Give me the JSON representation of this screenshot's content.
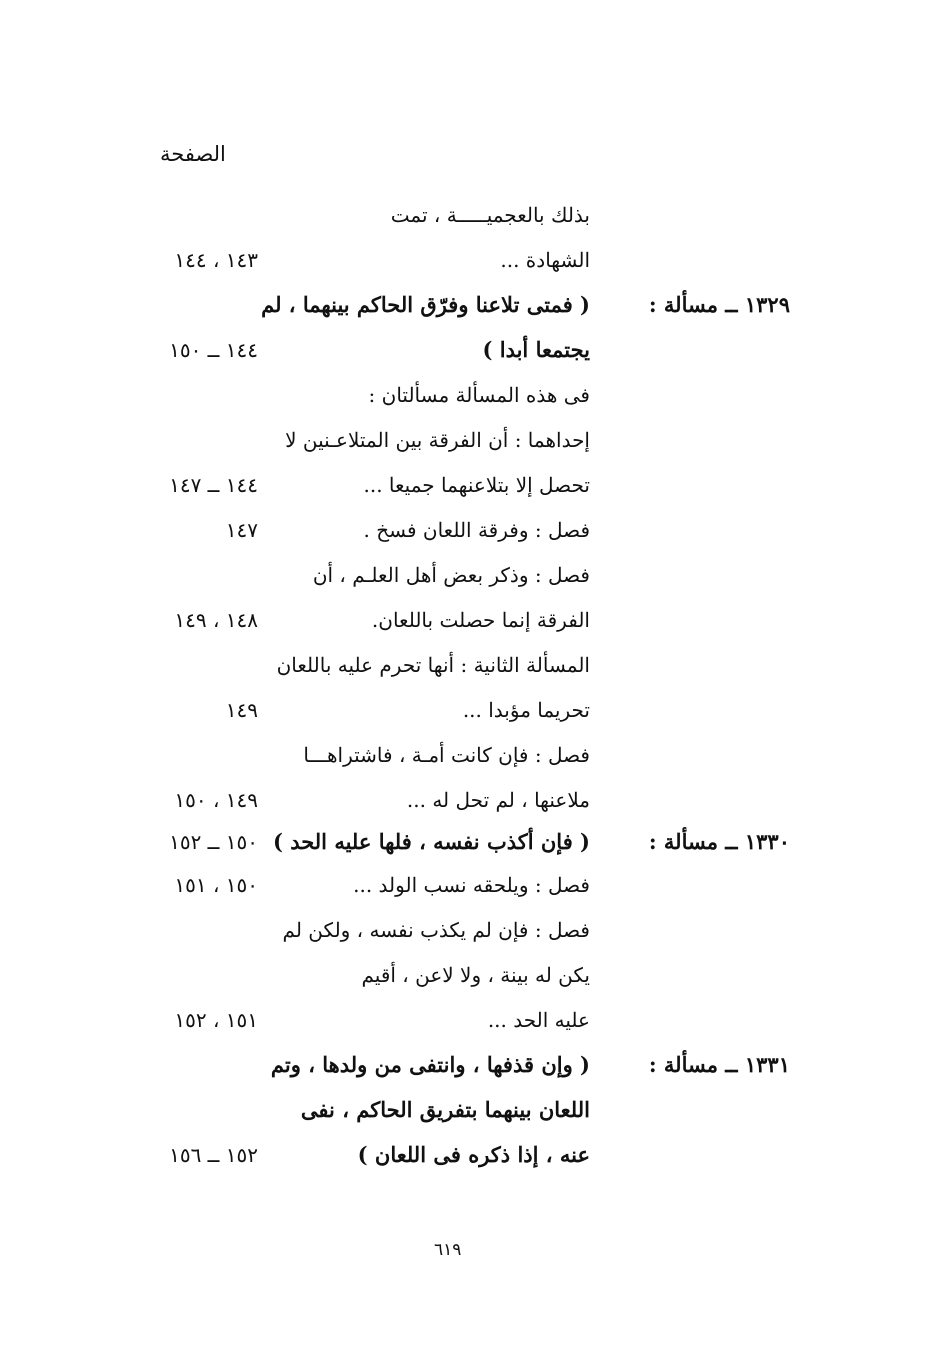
{
  "header": {
    "page_column_label": "الصفحة"
  },
  "rows": [
    {
      "text": "بذلك بالعجميـــــة ، تمت",
      "pages": "",
      "label": "",
      "bold": false
    },
    {
      "text": "الشهادة ...",
      "pages": "١٤٣ ، ١٤٤",
      "label": "",
      "bold": false
    },
    {
      "text": "( فمتى تلاعنا وفرّق الحاكم بينهما ، لم",
      "pages": "",
      "label": "١٣٢٩ ــ مسألة :",
      "bold": true
    },
    {
      "text": "يجتمعا أبدا )",
      "pages": "١٤٤ ــ ١٥٠",
      "label": "",
      "bold": true
    },
    {
      "text": "فى هذه المسألة مسألتان :",
      "pages": "",
      "label": "",
      "bold": false
    },
    {
      "text": "إحداهما : أن الفرقة بين المتلاعـنين لا",
      "pages": "",
      "label": "",
      "bold": false
    },
    {
      "text": "تحصل إلا بتلاعنهما جميعا ...",
      "pages": "١٤٤ ــ ١٤٧",
      "label": "",
      "bold": false
    },
    {
      "text": "فصل : وفرقة اللعان فسخ .",
      "pages": "١٤٧",
      "label": "",
      "bold": false
    },
    {
      "text": "فصل : وذكر بعض أهل العلـم ، أن",
      "pages": "",
      "label": "",
      "bold": false
    },
    {
      "text": "الفرقة إنما حصلت باللعان.",
      "pages": "١٤٨ ، ١٤٩",
      "label": "",
      "bold": false
    },
    {
      "text": "المسألة الثانية : أنها تحرم عليه باللعان",
      "pages": "",
      "label": "",
      "bold": false
    },
    {
      "text": "تحريما مؤبدا ...",
      "pages": "١٤٩",
      "label": "",
      "bold": false
    },
    {
      "text": "فصل : فإن كانت أمـة ، فاشتراهـــا",
      "pages": "",
      "label": "",
      "bold": false
    },
    {
      "text": "ملاعنها ، لم تحل له ...",
      "pages": "١٤٩ ، ١٥٠",
      "label": "",
      "bold": false
    },
    {
      "text": "( فإن أكذب نفسه ، فلها عليه الحد )",
      "pages": "١٥٠ ــ ١٥٢",
      "label": "١٣٣٠ ــ مسألة :",
      "bold": true
    },
    {
      "text": "فصل : ويلحقه نسب الولد ...",
      "pages": "١٥٠ ، ١٥١",
      "label": "",
      "bold": false
    },
    {
      "text": "فصل : فإن لم يكذب نفسه ، ولكن لم",
      "pages": "",
      "label": "",
      "bold": false
    },
    {
      "text": "يكن له بينة ، ولا لاعن ، أقيم",
      "pages": "",
      "label": "",
      "bold": false
    },
    {
      "text": "عليه الحد ...",
      "pages": "١٥١ ، ١٥٢",
      "label": "",
      "bold": false
    },
    {
      "text": "( وإن قذفها ، وانتفى من ولدها ، وتم",
      "pages": "",
      "label": "١٣٣١ ــ مسألة :",
      "bold": true
    },
    {
      "text": "اللعان بينهما بتفريق الحاكم ، نفى",
      "pages": "",
      "label": "",
      "bold": true
    },
    {
      "text": "عنه ، إذا ذكره فى اللعان )",
      "pages": "١٥٢ ــ ١٥٦",
      "label": "",
      "bold": true
    }
  ],
  "footer": {
    "page_number": "٦١٩"
  }
}
